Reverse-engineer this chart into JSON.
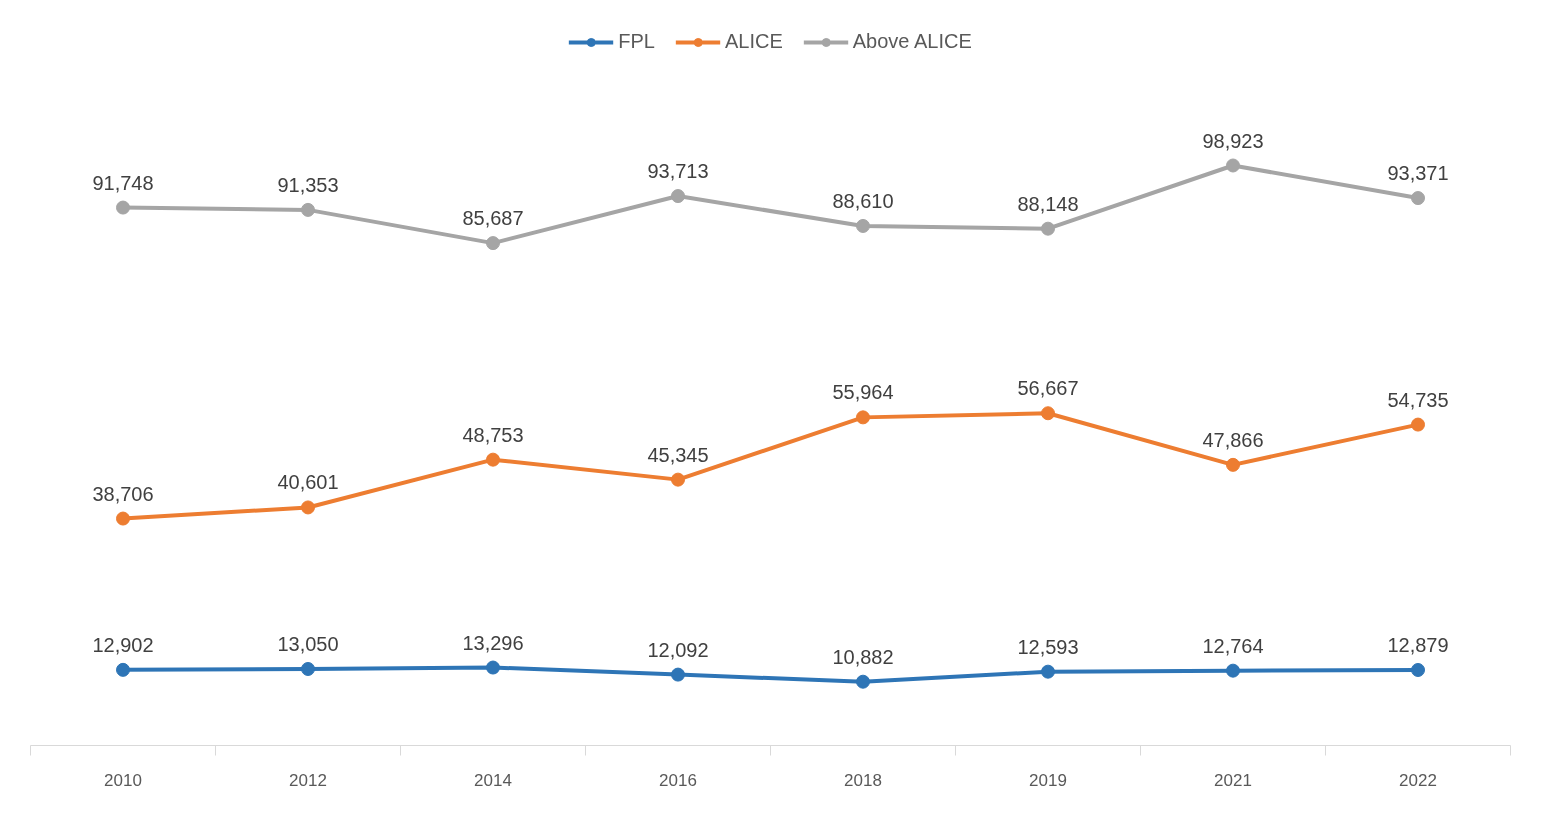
{
  "chart_data": {
    "type": "line",
    "categories": [
      "2010",
      "2012",
      "2014",
      "2016",
      "2018",
      "2019",
      "2021",
      "2022"
    ],
    "series": [
      {
        "name": "FPL",
        "color": "#2e75b6",
        "values": [
          12902,
          13050,
          13296,
          12092,
          10882,
          12593,
          12764,
          12879
        ],
        "value_labels": [
          "12,902",
          "13,050",
          "13,296",
          "12,092",
          "10,882",
          "12,593",
          "12,764",
          "12,879"
        ]
      },
      {
        "name": "ALICE",
        "color": "#ed7d31",
        "values": [
          38706,
          40601,
          48753,
          45345,
          55964,
          56667,
          47866,
          54735
        ],
        "value_labels": [
          "38,706",
          "40,601",
          "48,753",
          "45,345",
          "55,964",
          "56,667",
          "47,866",
          "54,735"
        ]
      },
      {
        "name": "Above ALICE",
        "color": "#a5a5a5",
        "values": [
          91748,
          91353,
          85687,
          93713,
          88610,
          88148,
          98923,
          93371
        ],
        "value_labels": [
          "91,748",
          "91,353",
          "85,687",
          "93,713",
          "88,610",
          "88,148",
          "98,923",
          "93,371"
        ]
      }
    ],
    "legend": "top",
    "marker": "circle",
    "line_style": "solid",
    "grid": false
  }
}
